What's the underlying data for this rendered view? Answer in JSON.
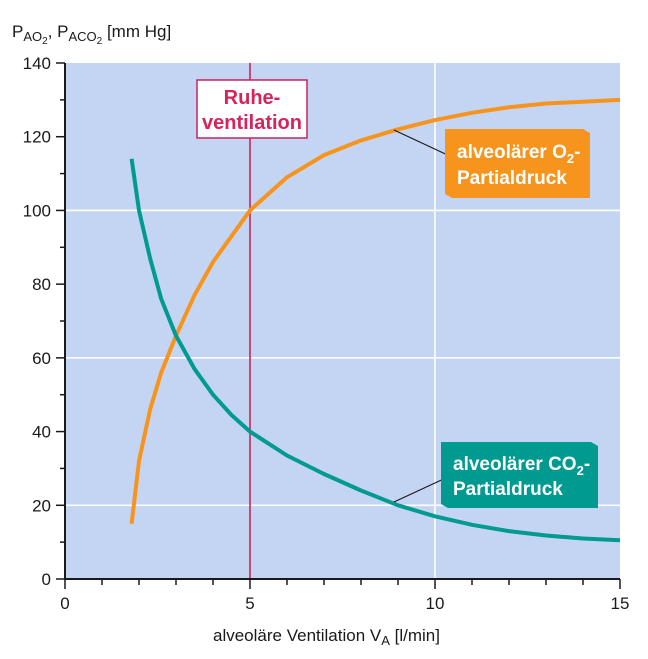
{
  "chart_data": {
    "type": "line",
    "ylabel": {
      "p1": "P",
      "s1": "AO",
      "n1": "2",
      "sep": ", P",
      "s2": "ACO",
      "n2": "2",
      "unit": " [mm Hg]"
    },
    "xlabel": {
      "pre": "alveoläre Ventilation ",
      "v": "V",
      "sub": "A",
      "unit": " [l/min]"
    },
    "xlim": [
      0,
      15
    ],
    "ylim": [
      0,
      140
    ],
    "x_ticks": [
      "0",
      "5",
      "10",
      "15"
    ],
    "y_ticks": [
      "0",
      "20",
      "40",
      "60",
      "80",
      "100",
      "120",
      "140"
    ],
    "grid": true,
    "series": [
      {
        "name": "alveolärer O2-Partialdruck",
        "label_lines": [
          {
            "pre": "alveolärer O",
            "sub": "2",
            "post": "-"
          },
          {
            "pre": "Partialdruck",
            "sub": "",
            "post": ""
          }
        ],
        "color": "#f7941d",
        "x": [
          1.8,
          2.0,
          2.3,
          2.6,
          3.0,
          3.5,
          4.0,
          4.5,
          5.0,
          6.0,
          7.0,
          8.0,
          9.0,
          10.0,
          11.0,
          12.0,
          13.0,
          14.0,
          15.0
        ],
        "y": [
          15,
          32,
          46,
          56,
          66,
          77,
          86,
          93,
          100,
          109,
          115,
          119,
          122,
          124.5,
          126.5,
          128,
          129,
          129.5,
          130
        ]
      },
      {
        "name": "alveolärer CO2-Partialdruck",
        "label_lines": [
          {
            "pre": "alveolärer  CO",
            "sub": "2",
            "post": "-"
          },
          {
            "pre": "Partialdruck",
            "sub": "",
            "post": ""
          }
        ],
        "color": "#009a90",
        "x": [
          1.8,
          2.0,
          2.3,
          2.6,
          3.0,
          3.5,
          4.0,
          4.5,
          5.0,
          6.0,
          7.0,
          8.0,
          9.0,
          10.0,
          11.0,
          12.0,
          13.0,
          14.0,
          15.0
        ],
        "y": [
          114,
          100,
          87,
          76,
          66,
          57,
          50,
          44.5,
          40,
          33.5,
          28.5,
          24,
          20,
          17,
          14.7,
          13,
          11.8,
          11,
          10.5
        ]
      }
    ],
    "reference_line": {
      "x": 5,
      "label_lines": [
        "Ruhe-",
        "ventilation"
      ],
      "color": "#c8245c"
    }
  }
}
